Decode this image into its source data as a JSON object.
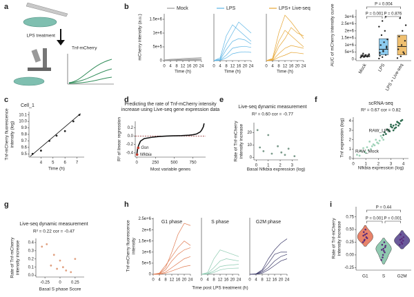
{
  "illustration": {
    "panel": "a",
    "labels": [
      "LPS treatment",
      "Tnf-mCherry"
    ]
  },
  "chart_data": [
    {
      "type": "line",
      "panel": "b",
      "title": "Mock",
      "ylabel": "mCherry intensity (a.u.)",
      "xlabel": "Time (h)",
      "x": [
        0,
        4,
        8,
        12,
        16,
        20,
        24
      ],
      "xlim": [
        0,
        24
      ],
      "xticks": [
        0,
        4,
        8,
        12,
        16,
        20,
        24
      ],
      "ylim": [
        0,
        1700000
      ],
      "yticks": [
        0,
        {
          "value": 500000,
          "label": "5e+5"
        },
        {
          "value": 1000000,
          "label": "1e+6"
        },
        {
          "value": 1500000,
          "label": "1.5e+6"
        }
      ],
      "series": [
        {
          "color": "#9a9a9a",
          "values": [
            20000,
            30000,
            40000,
            50000,
            60000,
            70000,
            80000
          ]
        },
        {
          "color": "#9a9a9a",
          "values": [
            10000,
            20000,
            30000,
            30000,
            40000,
            50000,
            50000
          ]
        },
        {
          "color": "#9a9a9a",
          "values": [
            30000,
            50000,
            60000,
            80000,
            90000,
            100000,
            110000
          ]
        },
        {
          "color": "#9a9a9a",
          "values": [
            5000,
            10000,
            15000,
            20000,
            20000,
            25000,
            30000
          ]
        }
      ]
    },
    {
      "type": "line",
      "title": "LPS",
      "xlabel": "Time (h)",
      "x": [
        0,
        4,
        8,
        12,
        16,
        20,
        24
      ],
      "xlim": [
        0,
        24
      ],
      "xticks": [
        0,
        4,
        8,
        12,
        16,
        20,
        24
      ],
      "ylim": [
        0,
        1700000
      ],
      "series": [
        {
          "color": "#5ab4e5",
          "values": [
            0,
            100000,
            900000,
            1300000,
            1100000,
            900000,
            700000
          ]
        },
        {
          "color": "#5ab4e5",
          "values": [
            0,
            50000,
            600000,
            1000000,
            1400000,
            1200000,
            1000000
          ]
        },
        {
          "color": "#5ab4e5",
          "values": [
            0,
            30000,
            400000,
            700000,
            800000,
            750000,
            600000
          ]
        },
        {
          "color": "#5ab4e5",
          "values": [
            0,
            20000,
            200000,
            450000,
            500000,
            520000,
            480000
          ]
        },
        {
          "color": "#5ab4e5",
          "values": [
            0,
            10000,
            100000,
            250000,
            300000,
            320000,
            300000
          ]
        }
      ]
    },
    {
      "type": "line",
      "title": "LPS+ Live-seq",
      "xlabel": "Time (h)",
      "x": [
        0,
        4,
        8,
        12,
        16,
        20,
        24
      ],
      "xlim": [
        0,
        24
      ],
      "xticks": [
        0,
        4,
        8,
        12,
        16,
        20,
        24
      ],
      "ylim": [
        0,
        1700000
      ],
      "series": [
        {
          "color": "#e6a532",
          "values": [
            0,
            80000,
            1000000,
            1650000,
            1400000,
            1100000,
            800000
          ]
        },
        {
          "color": "#e6a532",
          "values": [
            0,
            50000,
            700000,
            1100000,
            900000,
            700000,
            500000
          ]
        },
        {
          "color": "#e6a532",
          "values": [
            0,
            40000,
            500000,
            800000,
            1200000,
            1000000,
            900000
          ]
        },
        {
          "color": "#e6a532",
          "values": [
            0,
            20000,
            250000,
            450000,
            550000,
            500000,
            450000
          ]
        },
        {
          "color": "#e6a532",
          "values": [
            0,
            10000,
            120000,
            200000,
            300000,
            280000,
            250000
          ]
        }
      ]
    },
    {
      "type": "box",
      "ylabel": "AUC of mCherry intensity curve",
      "categories": [
        "Mock",
        "LPS",
        "LPS + Live-seq"
      ],
      "ylim": [
        -100000,
        3500000
      ],
      "yticks": [
        0,
        {
          "value": 500000,
          "label": "5e+5"
        },
        {
          "value": 1000000,
          "label": "1e+6"
        },
        {
          "value": 1500000,
          "label": "1.5e+6"
        },
        {
          "value": 2000000,
          "label": "2e+6"
        },
        {
          "value": 2500000,
          "label": "2.5e+6"
        },
        {
          "value": 3000000,
          "label": "3e+6"
        }
      ],
      "colors": [
        "#bdbdbd",
        "#8ccbef",
        "#f0c070"
      ],
      "point_color": "#222222",
      "points": [
        [
          120000,
          150000,
          180000,
          200000,
          220000,
          250000,
          280000,
          300000,
          350000,
          400000
        ],
        [
          50000,
          150000,
          300000,
          450000,
          600000,
          800000,
          1000000,
          1200000,
          1400000,
          1700000,
          2000000,
          2300000,
          2700000,
          3000000,
          250000,
          550000,
          900000
        ],
        [
          80000,
          200000,
          400000,
          700000,
          1000000,
          1300000,
          1600000,
          2000000,
          2400000,
          2900000,
          500000
        ]
      ],
      "q1": [
        160000,
        300000,
        300000
      ],
      "median": [
        230000,
        700000,
        900000
      ],
      "q3": [
        300000,
        1450000,
        1700000
      ],
      "annotations": [
        "P = 0.004",
        "P = 0.001",
        "P = 0.876"
      ]
    },
    {
      "type": "scatter",
      "panel": "c",
      "title": "Cell_1",
      "ylabel": [
        "Tnf-mCherry fluorescence",
        "intensity (log)"
      ],
      "xlabel": "Time (h)",
      "xlim": [
        3,
        7.6
      ],
      "xticks": [
        4,
        5,
        6,
        7
      ],
      "ylim": [
        9.45,
        10.15
      ],
      "yticks": [
        9.5,
        9.6,
        9.7,
        9.8,
        9.9,
        {
          "value": 10,
          "label": "10.0"
        },
        10.1
      ],
      "series": [
        {
          "color": "#222222",
          "x": [
            3.3,
            4.0,
            4.7,
            5.3,
            6.0,
            6.7,
            7.2
          ],
          "values": [
            9.5,
            9.55,
            9.7,
            9.78,
            9.85,
            10.0,
            10.1
          ]
        }
      ],
      "fit_line": {
        "x": [
          3.1,
          7.3
        ],
        "y": [
          9.46,
          10.12
        ]
      }
    },
    {
      "type": "line",
      "panel": "d",
      "title": [
        "Predicting the rate of Tnf-mCherry intensity",
        "increase using Live-seq gene expression data"
      ],
      "ylabel": "R² of linear regression",
      "xlabel": "Most variable genes",
      "x": [
        0,
        10,
        25,
        50,
        100,
        200,
        300,
        400,
        500,
        600,
        700,
        750,
        800,
        850,
        870,
        890,
        900
      ],
      "xlim": [
        -20,
        920
      ],
      "xticks": [
        0,
        250,
        500,
        750
      ],
      "ylim": [
        -0.5,
        0.35
      ],
      "yticks": [
        -0.4,
        -0.2,
        {
          "value": 0,
          "label": "0.0"
        },
        0.2
      ],
      "series": [
        {
          "color": "#111111",
          "values": [
            -0.45,
            -0.32,
            -0.22,
            -0.12,
            -0.06,
            -0.03,
            -0.01,
            0,
            0.005,
            0.01,
            0.02,
            0.03,
            0.05,
            0.1,
            0.15,
            0.22,
            0.3
          ]
        }
      ],
      "reference_line": 0,
      "reference_color": "#8b1a1a",
      "highlight_color": "#c0392b",
      "highlights": [
        {
          "label": "Gsn",
          "x": 20,
          "y": -0.28
        },
        {
          "label": "Nfkbia",
          "x": 5,
          "y": -0.44
        }
      ]
    },
    {
      "type": "scatter",
      "panel": "e",
      "title": "Live-seq dynamic measurement",
      "subtitle": "R² = 0.60 cor = -0.77",
      "ylabel": [
        "Rate of Tnf-mCherry",
        "intensity increase"
      ],
      "xlabel": "Basal Nfkbia expression (log)",
      "xlim": [
        -0.2,
        3.5
      ],
      "xticks": [
        0,
        1,
        2,
        3
      ],
      "ylim": [
        -2,
        28
      ],
      "yticks": [
        0,
        10,
        20
      ],
      "series": [
        {
          "color": "#7a9a8a",
          "x": [
            0.1,
            0.3,
            0.6,
            1.0,
            1.3,
            1.8,
            2.1,
            2.4,
            2.7,
            3.2
          ],
          "values": [
            22,
            8,
            5,
            18,
            3,
            9,
            4,
            2,
            7,
            1
          ]
        }
      ]
    },
    {
      "type": "scatter",
      "panel": "f",
      "title": "scRNA-seq",
      "subtitle": "R² = 0.67 cor = 0.82",
      "ylabel": "Tnf expression (log)",
      "xlabel": "Nfkbia expression (log)",
      "xlim": [
        0,
        4.4
      ],
      "xticks": [
        0,
        1,
        2,
        3,
        4
      ],
      "ylim": [
        0,
        4.4
      ],
      "yticks": [
        0,
        1,
        2,
        3,
        4
      ],
      "series": [
        {
          "name": "RAW_LPS",
          "color": "#2e6b4f",
          "x": [
            2.5,
            2.8,
            3.0,
            3.2,
            3.4,
            3.6,
            3.8,
            2.9,
            3.3,
            3.5,
            2.6,
            3.1,
            3.7,
            3.9,
            2.7,
            3.0,
            3.4,
            3.6,
            2.4,
            3.2
          ],
          "values": [
            2.8,
            3.0,
            3.4,
            3.5,
            3.6,
            3.8,
            4.0,
            2.9,
            3.2,
            3.9,
            2.6,
            3.3,
            3.7,
            4.1,
            3.1,
            3.6,
            3.3,
            3.5,
            2.5,
            3.0
          ]
        },
        {
          "name": "RAW_Mock",
          "color": "#9fd3b8",
          "x": [
            0.3,
            0.6,
            0.9,
            1.1,
            1.4,
            1.6,
            1.9,
            2.1,
            2.3,
            1.2,
            0.8,
            1.5,
            1.8,
            2.0,
            0.5,
            1.0,
            1.3,
            1.7,
            2.2,
            2.4
          ],
          "values": [
            0.4,
            0.8,
            0.7,
            1.2,
            1.0,
            1.5,
            1.7,
            1.9,
            2.2,
            0.9,
            1.1,
            1.3,
            2.0,
            1.6,
            0.3,
            0.6,
            1.8,
            1.4,
            2.4,
            2.0
          ]
        }
      ]
    },
    {
      "type": "scatter",
      "panel": "g",
      "title": "Live-seq dynamic measurement",
      "subtitle": "R² = 0.22 cor = -0.47",
      "ylabel": [
        "Rate of Tnf-mCherry",
        "intensity increase"
      ],
      "xlabel": "Basal S phase Score",
      "xlim": [
        -0.4,
        0.4
      ],
      "xticks": [
        -0.25,
        0,
        0.25
      ],
      "ylim": [
        -0.02,
        0.45
      ],
      "yticks": [
        {
          "value": 0,
          "label": "0.0"
        },
        0.1,
        0.2,
        0.3,
        0.4
      ],
      "series": [
        {
          "color": "#e0a080",
          "x": [
            -0.3,
            -0.22,
            -0.15,
            -0.1,
            -0.05,
            0,
            0.05,
            0.1,
            0.18,
            0.25
          ],
          "values": [
            0.35,
            0.38,
            0.12,
            0.25,
            0.08,
            0.18,
            0.1,
            0.06,
            0.04,
            0.2
          ]
        }
      ]
    },
    {
      "type": "line",
      "panel": "h",
      "title": "G1 phase",
      "ylabel": [
        "Tnf-mCherry fluorescence",
        "intensity"
      ],
      "x": [
        0,
        4,
        8,
        12,
        16,
        20,
        24
      ],
      "xlim": [
        0,
        24
      ],
      "xticks": [
        0,
        4,
        8,
        12,
        16,
        20,
        24
      ],
      "ylim": [
        0,
        2550000
      ],
      "yticks": [
        0,
        {
          "value": 500000,
          "label": "5e+5"
        },
        {
          "value": 1000000,
          "label": "1e+6"
        },
        {
          "value": 1500000,
          "label": "1.5e+6"
        },
        {
          "value": 2000000,
          "label": "2e+6"
        },
        {
          "value": 2500000,
          "label": "2.5e+6"
        }
      ],
      "series": [
        {
          "color": "#e07a50",
          "values": [
            0,
            50000,
            400000,
            800000,
            1200000,
            1500000,
            1300000
          ]
        },
        {
          "color": "#e07a50",
          "values": [
            0,
            30000,
            300000,
            1000000,
            1800000,
            2300000,
            2200000
          ]
        },
        {
          "color": "#e07a50",
          "values": [
            0,
            20000,
            200000,
            600000,
            900000,
            1100000,
            1200000
          ]
        },
        {
          "color": "#e07a50",
          "values": [
            0,
            10000,
            100000,
            300000,
            500000,
            700000,
            800000
          ]
        },
        {
          "color": "#e07a50",
          "values": [
            0,
            5000,
            50000,
            150000,
            250000,
            350000,
            400000
          ]
        }
      ]
    },
    {
      "type": "line",
      "title": "S phase",
      "xlabel": "Time post LPS treatment (h)",
      "x": [
        0,
        4,
        8,
        12,
        16,
        20,
        24
      ],
      "xlim": [
        0,
        24
      ],
      "xticks": [
        0,
        4,
        8,
        12,
        16,
        20,
        24
      ],
      "ylim": [
        0,
        2550000
      ],
      "series": [
        {
          "color": "#8ccab0",
          "values": [
            0,
            80000,
            700000,
            1100000,
            1000000,
            900000,
            800000
          ]
        },
        {
          "color": "#8ccab0",
          "values": [
            0,
            40000,
            300000,
            600000,
            700000,
            650000,
            600000
          ]
        },
        {
          "color": "#8ccab0",
          "values": [
            0,
            20000,
            150000,
            350000,
            400000,
            420000,
            450000
          ]
        },
        {
          "color": "#8ccab0",
          "values": [
            0,
            10000,
            80000,
            200000,
            250000,
            270000,
            280000
          ]
        }
      ]
    },
    {
      "type": "line",
      "title": "G2M phase",
      "x": [
        0,
        4,
        8,
        12,
        16,
        20,
        24
      ],
      "xlim": [
        0,
        24
      ],
      "xticks": [
        0,
        4,
        8,
        12,
        16,
        20,
        24
      ],
      "ylim": [
        0,
        2550000
      ],
      "series": [
        {
          "color": "#3a3868",
          "values": [
            0,
            20000,
            200000,
            700000,
            1100000,
            1400000,
            1600000
          ]
        },
        {
          "color": "#3a3868",
          "values": [
            0,
            10000,
            150000,
            500000,
            900000,
            1000000,
            1000000
          ]
        },
        {
          "color": "#3a3868",
          "values": [
            0,
            10000,
            100000,
            300000,
            600000,
            800000,
            900000
          ]
        },
        {
          "color": "#3a3868",
          "values": [
            0,
            5000,
            50000,
            200000,
            400000,
            600000,
            700000
          ]
        }
      ]
    },
    {
      "type": "violin",
      "panel": "i",
      "ylabel": [
        "Rate of Tnf-mCherry",
        "intensity increase"
      ],
      "categories": [
        "G1",
        "S",
        "G2M"
      ],
      "ylim": [
        -0.3,
        0.95
      ],
      "yticks": [
        -0.25,
        {
          "value": 0,
          "label": "0.00"
        },
        0.25,
        {
          "value": 0.5,
          "label": "0.50"
        },
        0.75
      ],
      "colors": [
        "#e8836a",
        "#8fc9b0",
        "#6a5a9a"
      ],
      "point_color": "#5a2a7a",
      "points": [
        [
          0.25,
          0.3,
          0.35,
          0.38,
          0.4,
          0.42,
          0.45,
          0.5,
          0.33,
          0.28
        ],
        [
          -0.1,
          0,
          0.05,
          0.1,
          0.12,
          0.15,
          0.2,
          0.08,
          0.18,
          -0.05,
          0.25
        ],
        [
          0.2,
          0.25,
          0.28,
          0.3,
          0.32,
          0.35,
          0.4,
          0.22
        ]
      ],
      "annotations": [
        "P = 0.44",
        "P = 0.001",
        "P = 0.001"
      ]
    }
  ]
}
